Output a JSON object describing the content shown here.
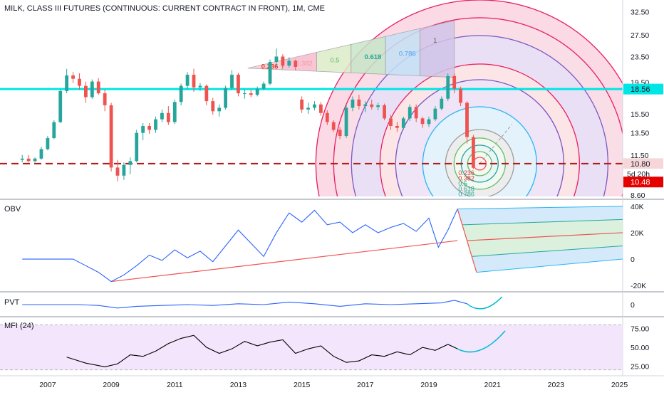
{
  "chart_data": [
    {
      "type": "candlestick",
      "title": "MILK, CLASS III FUTURES (CONTINUOUS: CURRENT CONTRACT IN FRONT), 1M, CME",
      "y_ticks": [
        "32.50",
        "27.50",
        "23.50",
        "19.50",
        "15.50",
        "13.50",
        "11.50",
        "8.60"
      ],
      "y_scale": "log",
      "ylim": [
        8.6,
        34
      ],
      "x_ticks": [
        "2007",
        "2009",
        "2011",
        "2013",
        "2015",
        "2017",
        "2019",
        "2021",
        "2023",
        "2025"
      ],
      "xlim": [
        2005.5,
        2025.1
      ],
      "price_line": {
        "value": 18.56,
        "label": "18.56",
        "color": "#00e5e5"
      },
      "dashed_line": {
        "value": 10.8,
        "label": "10.80",
        "color": "#b71c1c"
      },
      "countdown_label": "5d 20h",
      "last_price": {
        "value": 10.48,
        "label": "10.48",
        "color": "#e60000"
      },
      "fib_fan_labels": [
        "0.236",
        "0.382",
        "0.5",
        "0.618",
        "0.786",
        "1"
      ],
      "fib_circle_labels": [
        "0.236",
        "0.382",
        "0.5",
        "0.618",
        "0.786"
      ],
      "up_color": "#26a69a",
      "down_color": "#ef5350",
      "candles": [
        {
          "t": 2006.2,
          "o": 11.1,
          "h": 11.5,
          "l": 10.9,
          "c": 11.2
        },
        {
          "t": 2006.4,
          "o": 11.2,
          "h": 11.5,
          "l": 10.9,
          "c": 11.0
        },
        {
          "t": 2006.6,
          "o": 11.0,
          "h": 11.3,
          "l": 10.9,
          "c": 11.2
        },
        {
          "t": 2006.8,
          "o": 11.2,
          "h": 12.2,
          "l": 11.1,
          "c": 12.0
        },
        {
          "t": 2007.0,
          "o": 12.0,
          "h": 13.2,
          "l": 11.9,
          "c": 13.0
        },
        {
          "t": 2007.2,
          "o": 13.0,
          "h": 14.8,
          "l": 12.9,
          "c": 14.6
        },
        {
          "t": 2007.4,
          "o": 14.6,
          "h": 18.5,
          "l": 14.5,
          "c": 18.3
        },
        {
          "t": 2007.6,
          "o": 18.3,
          "h": 21.5,
          "l": 18.0,
          "c": 20.5
        },
        {
          "t": 2007.8,
          "o": 20.5,
          "h": 21.0,
          "l": 19.4,
          "c": 20.0
        },
        {
          "t": 2008.0,
          "o": 20.0,
          "h": 20.8,
          "l": 18.5,
          "c": 19.0
        },
        {
          "t": 2008.2,
          "o": 19.0,
          "h": 19.6,
          "l": 16.8,
          "c": 17.5
        },
        {
          "t": 2008.4,
          "o": 17.5,
          "h": 19.9,
          "l": 17.3,
          "c": 19.6
        },
        {
          "t": 2008.6,
          "o": 19.6,
          "h": 20.1,
          "l": 17.8,
          "c": 18.0
        },
        {
          "t": 2008.8,
          "o": 18.0,
          "h": 18.5,
          "l": 15.8,
          "c": 16.5
        },
        {
          "t": 2009.0,
          "o": 16.5,
          "h": 16.8,
          "l": 10.2,
          "c": 10.5
        },
        {
          "t": 2009.2,
          "o": 10.5,
          "h": 11.1,
          "l": 9.5,
          "c": 9.9
        },
        {
          "t": 2009.4,
          "o": 9.9,
          "h": 10.9,
          "l": 9.6,
          "c": 10.7
        },
        {
          "t": 2009.6,
          "o": 10.7,
          "h": 11.3,
          "l": 10.0,
          "c": 11.0
        },
        {
          "t": 2009.8,
          "o": 11.0,
          "h": 13.8,
          "l": 10.9,
          "c": 13.5
        },
        {
          "t": 2010.0,
          "o": 13.5,
          "h": 14.5,
          "l": 12.8,
          "c": 14.2
        },
        {
          "t": 2010.2,
          "o": 14.2,
          "h": 14.5,
          "l": 13.4,
          "c": 13.8
        },
        {
          "t": 2010.4,
          "o": 13.8,
          "h": 15.2,
          "l": 13.5,
          "c": 14.9
        },
        {
          "t": 2010.6,
          "o": 14.9,
          "h": 16.0,
          "l": 14.6,
          "c": 15.6
        },
        {
          "t": 2010.8,
          "o": 15.6,
          "h": 16.4,
          "l": 14.3,
          "c": 14.6
        },
        {
          "t": 2011.0,
          "o": 14.6,
          "h": 17.2,
          "l": 14.4,
          "c": 16.9
        },
        {
          "t": 2011.2,
          "o": 16.9,
          "h": 19.3,
          "l": 16.5,
          "c": 19.0
        },
        {
          "t": 2011.4,
          "o": 19.0,
          "h": 21.0,
          "l": 18.5,
          "c": 20.6
        },
        {
          "t": 2011.6,
          "o": 20.6,
          "h": 21.5,
          "l": 18.2,
          "c": 18.8
        },
        {
          "t": 2011.8,
          "o": 18.8,
          "h": 19.4,
          "l": 18.3,
          "c": 19.0
        },
        {
          "t": 2012.0,
          "o": 19.0,
          "h": 19.2,
          "l": 16.5,
          "c": 17.0
        },
        {
          "t": 2012.2,
          "o": 17.0,
          "h": 17.4,
          "l": 15.4,
          "c": 15.8
        },
        {
          "t": 2012.4,
          "o": 15.8,
          "h": 16.6,
          "l": 15.2,
          "c": 16.2
        },
        {
          "t": 2012.6,
          "o": 16.2,
          "h": 19.0,
          "l": 16.0,
          "c": 18.7
        },
        {
          "t": 2012.8,
          "o": 18.7,
          "h": 21.3,
          "l": 18.4,
          "c": 20.6
        },
        {
          "t": 2013.0,
          "o": 20.6,
          "h": 20.9,
          "l": 17.6,
          "c": 18.0
        },
        {
          "t": 2013.2,
          "o": 18.0,
          "h": 18.6,
          "l": 17.3,
          "c": 18.0
        },
        {
          "t": 2013.4,
          "o": 18.0,
          "h": 18.5,
          "l": 17.5,
          "c": 17.8
        },
        {
          "t": 2013.6,
          "o": 17.8,
          "h": 18.9,
          "l": 17.6,
          "c": 18.6
        },
        {
          "t": 2013.8,
          "o": 18.6,
          "h": 19.6,
          "l": 18.4,
          "c": 19.3
        },
        {
          "t": 2014.0,
          "o": 19.3,
          "h": 23.0,
          "l": 19.1,
          "c": 22.6
        },
        {
          "t": 2014.2,
          "o": 22.6,
          "h": 24.9,
          "l": 21.8,
          "c": 23.5
        },
        {
          "t": 2014.4,
          "o": 23.5,
          "h": 23.9,
          "l": 21.6,
          "c": 22.0
        },
        {
          "t": 2014.6,
          "o": 22.0,
          "h": 23.4,
          "l": 21.7,
          "c": 22.8
        },
        {
          "t": 2014.8,
          "o": 22.8,
          "h": 23.0,
          "l": 21.3,
          "c": 21.8
        },
        {
          "t": 2015.0,
          "o": 17.2,
          "h": 17.6,
          "l": 15.6,
          "c": 16.0
        },
        {
          "t": 2015.2,
          "o": 16.0,
          "h": 16.8,
          "l": 15.5,
          "c": 16.2
        },
        {
          "t": 2015.4,
          "o": 16.2,
          "h": 17.0,
          "l": 15.9,
          "c": 16.6
        },
        {
          "t": 2015.6,
          "o": 16.6,
          "h": 16.9,
          "l": 15.3,
          "c": 15.6
        },
        {
          "t": 2015.8,
          "o": 15.6,
          "h": 15.9,
          "l": 14.3,
          "c": 14.6
        },
        {
          "t": 2016.0,
          "o": 14.6,
          "h": 14.8,
          "l": 13.6,
          "c": 13.8
        },
        {
          "t": 2016.2,
          "o": 13.8,
          "h": 14.1,
          "l": 12.9,
          "c": 13.2
        },
        {
          "t": 2016.4,
          "o": 13.2,
          "h": 16.6,
          "l": 13.0,
          "c": 16.2
        },
        {
          "t": 2016.6,
          "o": 16.2,
          "h": 17.6,
          "l": 15.8,
          "c": 17.2
        },
        {
          "t": 2016.8,
          "o": 17.2,
          "h": 17.8,
          "l": 16.0,
          "c": 16.4
        },
        {
          "t": 2017.0,
          "o": 16.4,
          "h": 17.0,
          "l": 15.7,
          "c": 16.6
        },
        {
          "t": 2017.2,
          "o": 16.6,
          "h": 17.2,
          "l": 16.0,
          "c": 16.3
        },
        {
          "t": 2017.4,
          "o": 16.3,
          "h": 16.8,
          "l": 15.9,
          "c": 16.5
        },
        {
          "t": 2017.6,
          "o": 16.5,
          "h": 16.7,
          "l": 14.8,
          "c": 15.0
        },
        {
          "t": 2017.8,
          "o": 15.0,
          "h": 15.4,
          "l": 13.8,
          "c": 14.2
        },
        {
          "t": 2018.0,
          "o": 14.2,
          "h": 14.6,
          "l": 13.6,
          "c": 14.0
        },
        {
          "t": 2018.2,
          "o": 14.0,
          "h": 15.2,
          "l": 13.8,
          "c": 15.0
        },
        {
          "t": 2018.4,
          "o": 15.0,
          "h": 16.6,
          "l": 14.7,
          "c": 16.3
        },
        {
          "t": 2018.6,
          "o": 16.3,
          "h": 16.6,
          "l": 14.6,
          "c": 15.0
        },
        {
          "t": 2018.8,
          "o": 15.0,
          "h": 15.2,
          "l": 14.0,
          "c": 14.4
        },
        {
          "t": 2019.0,
          "o": 14.4,
          "h": 15.2,
          "l": 14.1,
          "c": 14.9
        },
        {
          "t": 2019.2,
          "o": 14.9,
          "h": 16.4,
          "l": 14.7,
          "c": 16.1
        },
        {
          "t": 2019.4,
          "o": 16.1,
          "h": 17.6,
          "l": 15.9,
          "c": 17.3
        },
        {
          "t": 2019.6,
          "o": 17.3,
          "h": 20.8,
          "l": 17.0,
          "c": 20.4
        },
        {
          "t": 2019.8,
          "o": 20.4,
          "h": 20.8,
          "l": 18.0,
          "c": 18.6
        },
        {
          "t": 2020.0,
          "o": 18.6,
          "h": 18.9,
          "l": 16.4,
          "c": 16.8
        },
        {
          "t": 2020.2,
          "o": 16.8,
          "h": 17.0,
          "l": 12.5,
          "c": 13.1
        },
        {
          "t": 2020.4,
          "o": 13.1,
          "h": 13.3,
          "l": 10.4,
          "c": 10.48
        }
      ]
    },
    {
      "type": "line",
      "label": "OBV",
      "y_ticks": [
        "40K",
        "20K",
        "0",
        "-20K"
      ],
      "ylim": [
        -21000,
        41000
      ],
      "x": [
        2006.2,
        2007.0,
        2007.8,
        2008.2,
        2008.6,
        2009.0,
        2009.4,
        2009.8,
        2010.2,
        2010.6,
        2011.0,
        2011.4,
        2011.8,
        2012.2,
        2012.6,
        2013.0,
        2013.4,
        2013.8,
        2014.2,
        2014.6,
        2015.0,
        2015.4,
        2015.8,
        2016.2,
        2016.6,
        2017.0,
        2017.4,
        2017.8,
        2018.2,
        2018.6,
        2019.0,
        2019.3,
        2019.6,
        2019.9
      ],
      "y": [
        0,
        0,
        0,
        -5000,
        -10000,
        -17000,
        -12000,
        -5000,
        3000,
        -1000,
        7000,
        1000,
        6000,
        -2000,
        10000,
        22000,
        12000,
        2000,
        20000,
        35000,
        28000,
        37000,
        26000,
        28000,
        20000,
        26000,
        20000,
        24000,
        27000,
        21000,
        31000,
        9000,
        22000,
        38000
      ],
      "line_color": "#2962ff"
    },
    {
      "type": "line",
      "label": "PVT",
      "y_ticks": [
        "0"
      ],
      "ylim": [
        -1,
        1
      ],
      "x": [
        2006.2,
        2007.0,
        2008.0,
        2008.6,
        2009.2,
        2009.8,
        2010.6,
        2011.4,
        2012.2,
        2013.0,
        2013.8,
        2014.6,
        2015.4,
        2016.2,
        2017.0,
        2017.8,
        2018.6,
        2019.4,
        2019.8,
        2020.2
      ],
      "y": [
        0,
        0,
        0,
        -0.1,
        -0.4,
        -0.2,
        -0.1,
        0,
        -0.1,
        0.1,
        0,
        0.3,
        0.1,
        -0.2,
        0.1,
        0,
        0.1,
        0.2,
        0.5,
        0.1
      ],
      "line_color": "#2962ff"
    },
    {
      "type": "line",
      "label": "MFI (24)",
      "y_ticks": [
        "75.00",
        "50.00",
        "25.00"
      ],
      "ylim": [
        14,
        88
      ],
      "band": [
        20,
        80
      ],
      "x": [
        2007.6,
        2008.2,
        2008.8,
        2009.2,
        2009.6,
        2010.0,
        2010.4,
        2010.8,
        2011.2,
        2011.6,
        2012.0,
        2012.4,
        2012.8,
        2013.2,
        2013.6,
        2014.0,
        2014.4,
        2014.8,
        2015.2,
        2015.6,
        2016.0,
        2016.4,
        2016.8,
        2017.2,
        2017.6,
        2018.0,
        2018.4,
        2018.8,
        2019.2,
        2019.6,
        2019.9
      ],
      "y": [
        37,
        29,
        24,
        28,
        40,
        38,
        45,
        55,
        62,
        66,
        50,
        42,
        48,
        58,
        52,
        57,
        60,
        42,
        48,
        52,
        38,
        30,
        32,
        40,
        38,
        44,
        40,
        50,
        46,
        54,
        48
      ],
      "line_color": "#000000"
    }
  ]
}
